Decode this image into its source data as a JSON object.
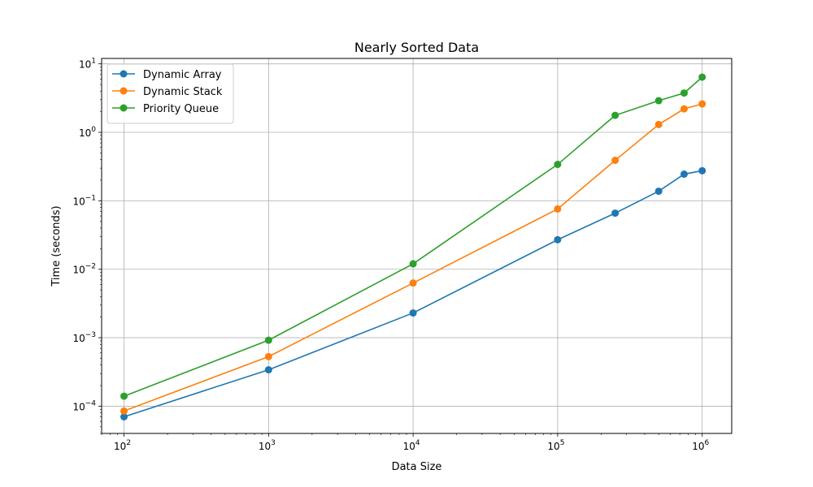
{
  "chart_data": {
    "type": "line",
    "title": "Nearly Sorted Data",
    "xlabel": "Data Size",
    "ylabel": "Time (seconds)",
    "xscale": "log",
    "yscale": "log",
    "xlim": [
      70,
      1600000
    ],
    "ylim": [
      4e-05,
      12
    ],
    "x_ticks": [
      100,
      1000,
      10000,
      100000,
      1000000
    ],
    "x_tick_labels": [
      {
        "base": "10",
        "exp": "2"
      },
      {
        "base": "10",
        "exp": "3"
      },
      {
        "base": "10",
        "exp": "4"
      },
      {
        "base": "10",
        "exp": "5"
      },
      {
        "base": "10",
        "exp": "6"
      }
    ],
    "y_ticks": [
      0.0001,
      0.001,
      0.01,
      0.1,
      1,
      10
    ],
    "y_tick_labels": [
      {
        "base": "10",
        "exp": "−4"
      },
      {
        "base": "10",
        "exp": "−3"
      },
      {
        "base": "10",
        "exp": "−2"
      },
      {
        "base": "10",
        "exp": "−1"
      },
      {
        "base": "10",
        "exp": "0"
      },
      {
        "base": "10",
        "exp": "1"
      }
    ],
    "grid": true,
    "legend_position": "top-left",
    "x": [
      100,
      1000,
      10000,
      100000,
      250000,
      500000,
      750000,
      1000000
    ],
    "series": [
      {
        "name": "Dynamic Array",
        "color": "#1f77b4",
        "values": [
          7e-05,
          0.00034,
          0.0023,
          0.027,
          0.066,
          0.138,
          0.245,
          0.275
        ]
      },
      {
        "name": "Dynamic Stack",
        "color": "#ff7f0e",
        "values": [
          8.5e-05,
          0.00053,
          0.0063,
          0.076,
          0.39,
          1.3,
          2.2,
          2.6
        ]
      },
      {
        "name": "Priority Queue",
        "color": "#2ca02c",
        "values": [
          0.00014,
          0.00092,
          0.012,
          0.34,
          1.77,
          2.9,
          3.75,
          6.4
        ]
      }
    ]
  }
}
